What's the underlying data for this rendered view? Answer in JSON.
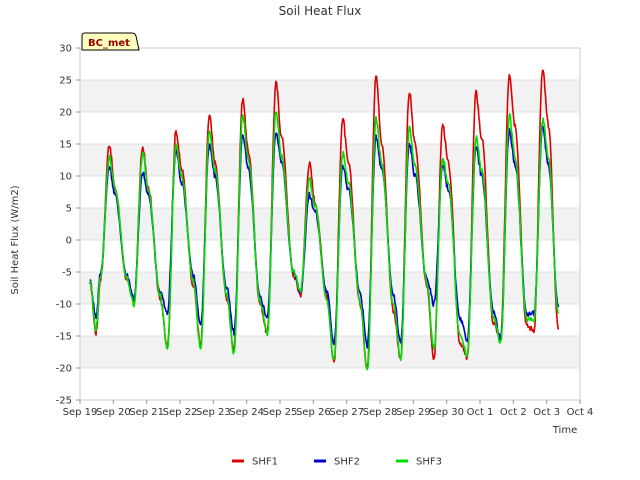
{
  "chart_data": {
    "type": "line",
    "title": "Soil Heat Flux",
    "xlabel": "Time",
    "ylabel": "Soil Heat Flux (W/m2)",
    "station_label": "BC_met",
    "ylim": [
      -25,
      30
    ],
    "yticks": [
      -25,
      -20,
      -15,
      -10,
      -5,
      0,
      5,
      10,
      15,
      20,
      25,
      30
    ],
    "xlim": [
      0,
      15
    ],
    "x_tick_labels": [
      "Sep 19",
      "Sep 20",
      "Sep 21",
      "Sep 22",
      "Sep 23",
      "Sep 24",
      "Sep 25",
      "Sep 26",
      "Sep 27",
      "Sep 28",
      "Sep 29",
      "Sep 30",
      "Oct 1",
      "Oct 2",
      "Oct 3",
      "Oct 4"
    ],
    "x_unit": "days since Sep 19 00:00",
    "grid": "horizontal bands",
    "legend_position": "bottom-center",
    "series": [
      {
        "name": "SHF1",
        "color": "#dd0000",
        "x": [
          0.3,
          0.48,
          0.62,
          0.88,
          1.05,
          1.4,
          1.62,
          1.88,
          2.05,
          2.4,
          2.62,
          2.88,
          3.05,
          3.4,
          3.62,
          3.88,
          4.05,
          4.4,
          4.62,
          4.88,
          5.05,
          5.4,
          5.62,
          5.88,
          6.05,
          6.4,
          6.62,
          6.88,
          7.05,
          7.4,
          7.62,
          7.88,
          8.05,
          8.4,
          8.62,
          8.88,
          9.05,
          9.4,
          9.62,
          9.88,
          10.05,
          10.4,
          10.62,
          10.88,
          11.05,
          11.4,
          11.62,
          11.88,
          12.05,
          12.4,
          12.62,
          12.88,
          13.05,
          13.4,
          13.62,
          13.88,
          14.05,
          14.35
        ],
        "y": [
          -6.5,
          -14.5,
          -6,
          15,
          8,
          -6,
          -9.5,
          14.5,
          8,
          -9,
          -16.5,
          17,
          11,
          -7,
          -16.5,
          19.5,
          12,
          -9,
          -17,
          22,
          14,
          -10,
          -14.5,
          24.5,
          16,
          -5.5,
          -8.5,
          12,
          6,
          -8.5,
          -19,
          19,
          12,
          -10,
          -20,
          26,
          15,
          -11,
          -18.5,
          23,
          15,
          -7,
          -18.5,
          18,
          12,
          -16,
          -18.5,
          23,
          16,
          -13,
          -15.5,
          26,
          18,
          -13.5,
          -14,
          26.5,
          18,
          -14
        ]
      },
      {
        "name": "SHF2",
        "color": "#0000cc",
        "x": [
          0.3,
          0.48,
          0.62,
          0.88,
          1.05,
          1.4,
          1.62,
          1.88,
          2.05,
          2.4,
          2.62,
          2.88,
          3.05,
          3.4,
          3.62,
          3.88,
          4.05,
          4.4,
          4.62,
          4.88,
          5.05,
          5.4,
          5.62,
          5.88,
          6.05,
          6.4,
          6.62,
          6.88,
          7.05,
          7.4,
          7.62,
          7.88,
          8.05,
          8.4,
          8.62,
          8.88,
          9.05,
          9.4,
          9.62,
          9.88,
          10.05,
          10.4,
          10.62,
          10.88,
          11.05,
          11.4,
          11.62,
          11.88,
          12.05,
          12.4,
          12.62,
          12.88,
          13.05,
          13.4,
          13.62,
          13.88,
          14.05,
          14.35
        ],
        "y": [
          -6.5,
          -12,
          -5,
          11.5,
          7,
          -5.5,
          -9,
          10.5,
          7,
          -8,
          -11.5,
          14,
          9,
          -5.5,
          -13.5,
          15,
          10,
          -7.5,
          -14.5,
          16.5,
          11,
          -9,
          -12,
          17,
          12,
          -5,
          -8,
          7,
          4.5,
          -8,
          -16,
          11.5,
          8,
          -8.5,
          -16.5,
          16,
          11,
          -8.5,
          -16,
          15,
          10,
          -6,
          -10,
          11.5,
          8,
          -12.5,
          -15.5,
          14.5,
          10,
          -11,
          -15.5,
          17,
          12,
          -11.5,
          -11.5,
          17.5,
          12,
          -10.5
        ]
      },
      {
        "name": "SHF3",
        "color": "#00dd00",
        "x": [
          0.3,
          0.48,
          0.62,
          0.88,
          1.05,
          1.4,
          1.62,
          1.88,
          2.05,
          2.4,
          2.62,
          2.88,
          3.05,
          3.4,
          3.62,
          3.88,
          4.05,
          4.4,
          4.62,
          4.88,
          5.05,
          5.4,
          5.62,
          5.88,
          6.05,
          6.4,
          6.62,
          6.88,
          7.05,
          7.4,
          7.62,
          7.88,
          8.05,
          8.4,
          8.62,
          8.88,
          9.05,
          9.4,
          9.62,
          9.88,
          10.05,
          10.4,
          10.62,
          10.88,
          11.05,
          11.4,
          11.62,
          11.88,
          12.05,
          12.4,
          12.62,
          12.88,
          13.05,
          13.4,
          13.62,
          13.88,
          14.05,
          14.35
        ],
        "y": [
          -6.5,
          -14,
          -5.5,
          13,
          8,
          -6,
          -10,
          13.5,
          8,
          -8.5,
          -17,
          15,
          10,
          -6.5,
          -17,
          17,
          11,
          -8.5,
          -18,
          19.5,
          12.5,
          -9.5,
          -14.5,
          20,
          13,
          -5,
          -8,
          9.5,
          5.5,
          -9,
          -19,
          13.5,
          9,
          -9.5,
          -20.5,
          19,
          12,
          -10,
          -18.5,
          17.5,
          11.5,
          -6.5,
          -17,
          12.5,
          9,
          -15,
          -18,
          16,
          11,
          -12,
          -16,
          19.5,
          13,
          -12.5,
          -12.5,
          19,
          13,
          -11.5
        ]
      }
    ]
  }
}
